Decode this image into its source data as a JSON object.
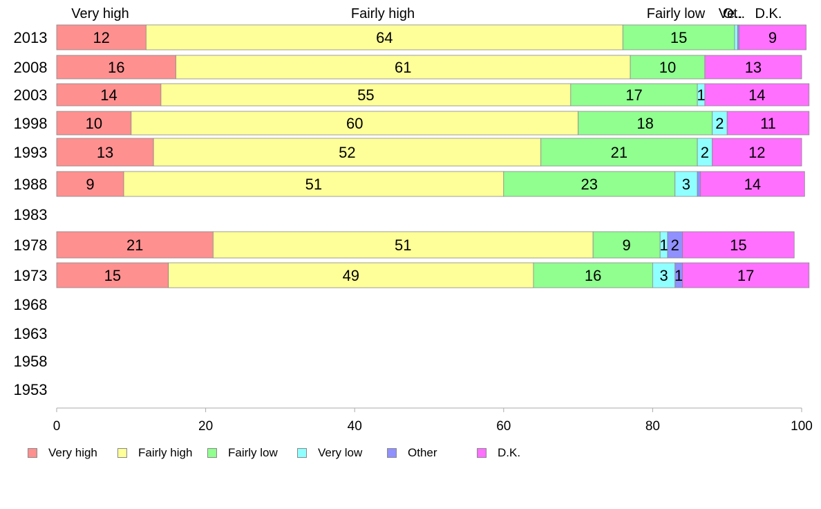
{
  "chart_data": {
    "type": "bar",
    "orientation": "horizontal",
    "stacked": true,
    "categories": [
      "2013",
      "2008",
      "2003",
      "1998",
      "1993",
      "1988",
      "1983",
      "1978",
      "1973",
      "1968",
      "1963",
      "1958",
      "1953"
    ],
    "series": [
      {
        "name": "Very high",
        "color": "#ff9090",
        "values": [
          12,
          16,
          14,
          10,
          13,
          9,
          null,
          21,
          15,
          null,
          null,
          null,
          null
        ]
      },
      {
        "name": "Fairly high",
        "color": "#ffff99",
        "values": [
          64,
          61,
          55,
          60,
          52,
          51,
          null,
          51,
          49,
          null,
          null,
          null,
          null
        ]
      },
      {
        "name": "Fairly low",
        "color": "#90ff90",
        "values": [
          15,
          10,
          17,
          18,
          21,
          23,
          null,
          9,
          16,
          null,
          null,
          null,
          null
        ]
      },
      {
        "name": "Very low",
        "color": "#90ffff",
        "values": [
          0.4,
          0,
          1,
          2,
          2,
          3,
          null,
          1,
          3,
          null,
          null,
          null,
          null
        ]
      },
      {
        "name": "Other",
        "color": "#9090ff",
        "values": [
          0.2,
          0,
          0,
          0,
          0,
          0.4,
          null,
          2,
          1,
          null,
          null,
          null,
          null
        ]
      },
      {
        "name": "D.K.",
        "color": "#ff70ff",
        "values": [
          9,
          13,
          14,
          11,
          12,
          14,
          null,
          15,
          17,
          null,
          null,
          null,
          null
        ]
      }
    ],
    "top_labels": [
      "Very high",
      "Fairly high",
      "Fairly low",
      "Ve..",
      "Ot..",
      "D.K."
    ],
    "xlim": [
      0,
      100
    ],
    "xticks": [
      "0",
      "20",
      "40",
      "60",
      "80",
      "100"
    ],
    "grid": false,
    "legend_position": "bottom-left"
  }
}
